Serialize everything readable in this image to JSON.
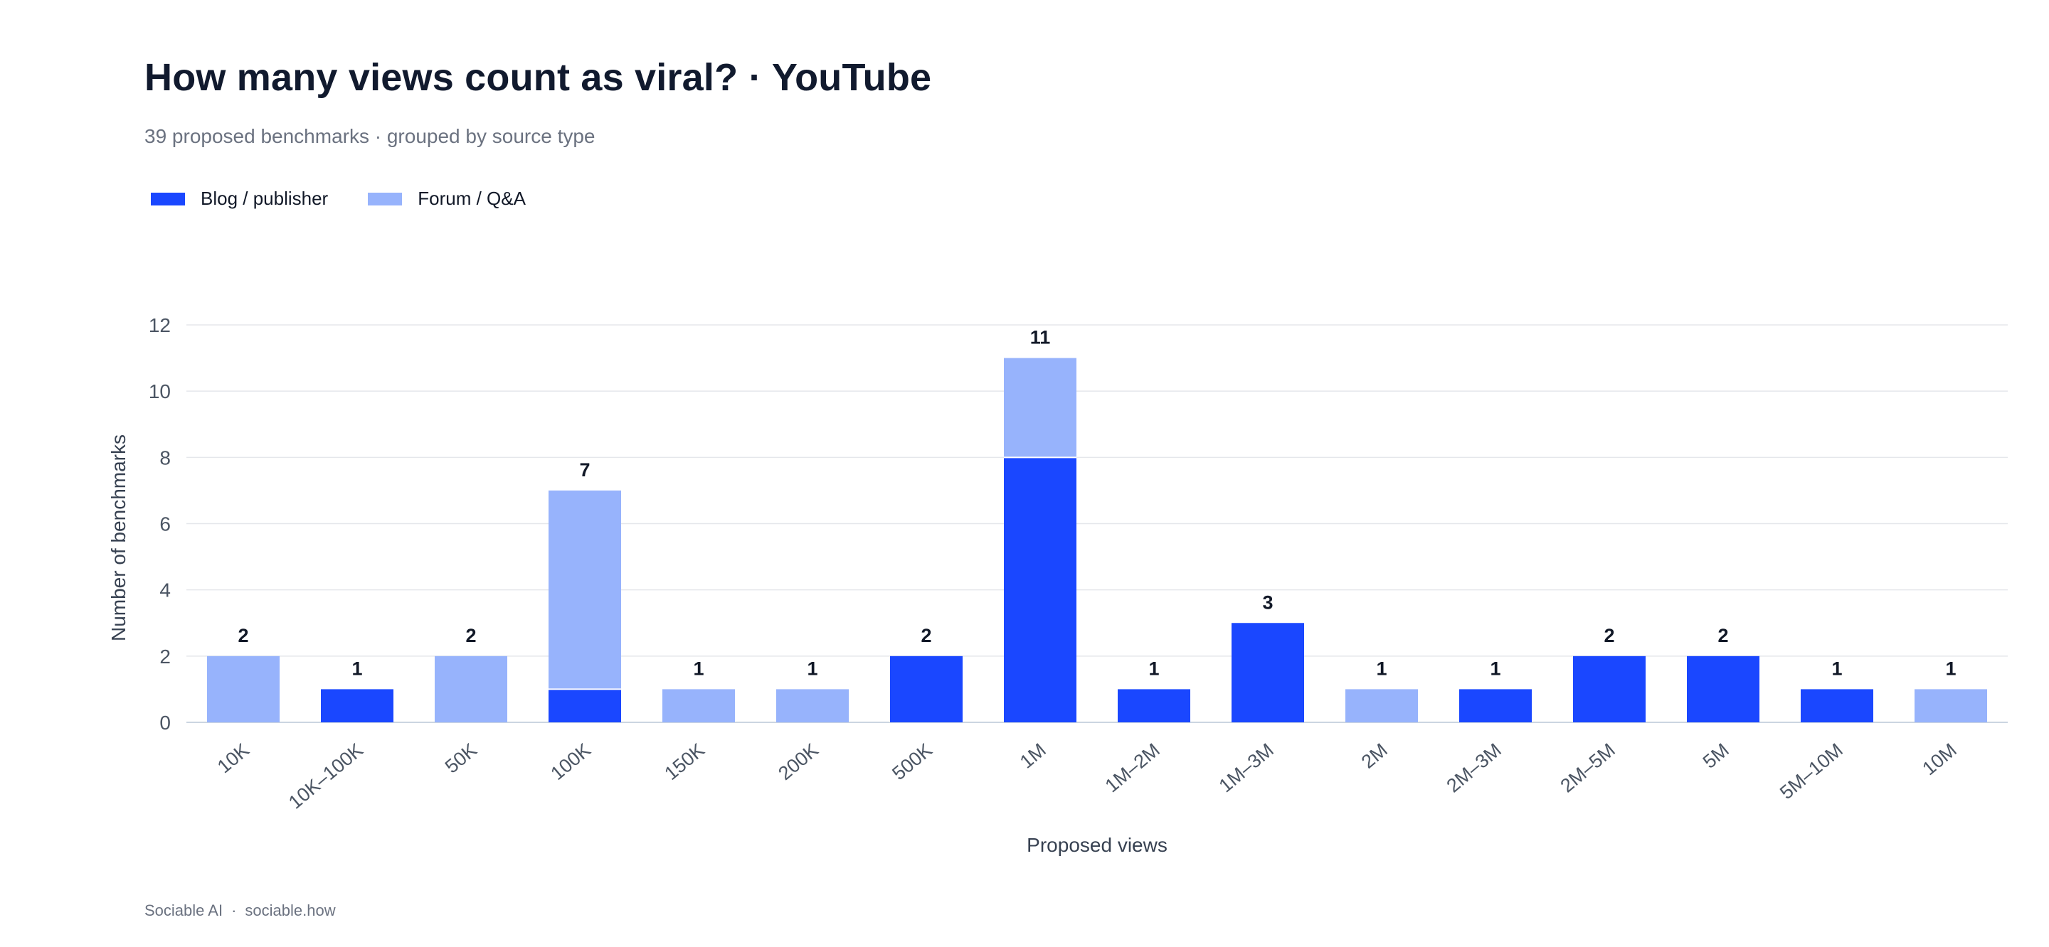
{
  "header": {
    "title": "How many views count as viral? · YouTube",
    "subtitle": "39 proposed benchmarks · grouped by source type"
  },
  "footer": {
    "brand": "Sociable AI",
    "separator": "·",
    "site": "sociable.how"
  },
  "colors": {
    "blog": "#1a47ff",
    "forum": "#97b3fc",
    "grid": "#e5e7eb",
    "axis": "#cbd5e1",
    "tick_text": "#4b5563",
    "label_text": "#111827"
  },
  "chart_data": {
    "type": "bar",
    "stacked": true,
    "title": "How many views count as viral? · YouTube",
    "subtitle": "39 proposed benchmarks · grouped by source type",
    "xlabel": "Proposed views",
    "ylabel": "Number of benchmarks",
    "ylim": [
      0,
      12
    ],
    "yticks": [
      0,
      2,
      4,
      6,
      8,
      10,
      12
    ],
    "grid": true,
    "legend_position": "top-left",
    "categories": [
      "10K",
      "10K–100K",
      "50K",
      "100K",
      "150K",
      "200K",
      "500K",
      "1M",
      "1M–2M",
      "1M–3M",
      "2M",
      "2M–3M",
      "2M–5M",
      "5M",
      "5M–10M",
      "10M"
    ],
    "series": [
      {
        "name": "Blog / publisher",
        "color": "#1a47ff",
        "values": [
          0,
          1,
          0,
          1,
          0,
          0,
          2,
          8,
          1,
          3,
          0,
          1,
          2,
          2,
          1,
          0
        ]
      },
      {
        "name": "Forum / Q&A",
        "color": "#97b3fc",
        "values": [
          2,
          0,
          2,
          6,
          1,
          1,
          0,
          3,
          0,
          0,
          1,
          0,
          0,
          0,
          0,
          1
        ]
      }
    ],
    "totals": [
      2,
      1,
      2,
      7,
      1,
      1,
      2,
      11,
      1,
      3,
      1,
      1,
      2,
      2,
      1,
      1
    ]
  }
}
